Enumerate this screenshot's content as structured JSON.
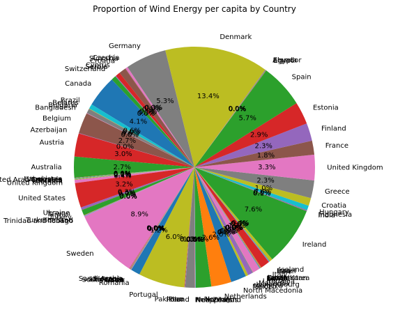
{
  "chart_data": {
    "type": "pie",
    "title": "Proportion of Wind Energy per capita by Country",
    "slices": [
      {
        "label": "Germany",
        "value": 5.3,
        "color": "#7f7f7f"
      },
      {
        "label": "Czechia",
        "value": 0.3,
        "color": "#e377c2"
      },
      {
        "label": "Slovakia",
        "value": 0.0,
        "color": "#8c564b"
      },
      {
        "label": "Croatia",
        "value": 0.9,
        "color": "#8c564b"
      },
      {
        "label": "Cyprus",
        "value": 0.6,
        "color": "#d62728"
      },
      {
        "label": "Serbia",
        "value": 0.1,
        "color": "#9467bd"
      },
      {
        "label": "Switzerland",
        "value": 0.6,
        "color": "#2ca02c"
      },
      {
        "label": "Canada",
        "value": 4.1,
        "color": "#1f77b4"
      },
      {
        "label": "Brazil",
        "value": 0.6,
        "color": "#17becf"
      },
      {
        "label": "Belarus",
        "value": 0.0,
        "color": "#bcbd22"
      },
      {
        "label": "Bulgaria",
        "value": 0.6,
        "color": "#7f7f7f"
      },
      {
        "label": "Bangladesh",
        "value": 0.0,
        "color": "#e377c2"
      },
      {
        "label": "Belgium",
        "value": 2.7,
        "color": "#8c564b"
      },
      {
        "label": "Azerbaijan",
        "value": 0.0,
        "color": "#9467bd"
      },
      {
        "label": "Austria",
        "value": 3.0,
        "color": "#d62728"
      },
      {
        "label": "Australia",
        "value": 2.7,
        "color": "#2ca02c"
      },
      {
        "label": "Uzbekistan",
        "value": 0.0,
        "color": "#ff7f0e"
      },
      {
        "label": "Venezuela",
        "value": 0.0,
        "color": "#1f77b4"
      },
      {
        "label": "United Arab Emirates",
        "value": 0.0,
        "color": "#17becf"
      },
      {
        "label": "Ukraine ",
        "value": 0.1,
        "color": "#bcbd22"
      },
      {
        "label": "Vietnam",
        "value": 0.0,
        "color": "#7f7f7f"
      },
      {
        "label": "United Kingdom ",
        "value": 0.4,
        "color": "#e377c2"
      },
      {
        "label": "United States",
        "value": 3.2,
        "color": "#d62728"
      },
      {
        "label": "Ukraine",
        "value": 0.3,
        "color": "#9467bd"
      },
      {
        "label": "Taiwan",
        "value": 0.0,
        "color": "#8c564b"
      },
      {
        "label": "Turkey",
        "value": 0.7,
        "color": "#2ca02c"
      },
      {
        "label": "Turkmenistan",
        "value": 0.0,
        "color": "#ff7f0e"
      },
      {
        "label": "Thailand",
        "value": 0.0,
        "color": "#9467bd"
      },
      {
        "label": "Trinidad and Tobago",
        "value": 0.0,
        "color": "#17becf"
      },
      {
        "label": "Sweden",
        "value": 8.9,
        "color": "#e377c2"
      },
      {
        "label": "Saudi Arabia",
        "value": 0.0,
        "color": "#d62728"
      },
      {
        "label": "Slovenia",
        "value": 0.0,
        "color": "#9467bd"
      },
      {
        "label": "Singapore",
        "value": 0.0,
        "color": "#bcbd22"
      },
      {
        "label": "Russia",
        "value": 0.0,
        "color": "#8c564b"
      },
      {
        "label": "South Africa",
        "value": 0.0,
        "color": "#7f7f7f"
      },
      {
        "label": "Qatar",
        "value": 0.0,
        "color": "#e377c2"
      },
      {
        "label": "Romania",
        "value": 1.2,
        "color": "#1f77b4"
      },
      {
        "label": "Portugal",
        "value": 6.0,
        "color": "#bcbd22"
      },
      {
        "label": "Pakistan",
        "value": 0.0,
        "color": "#d62728"
      },
      {
        "label": "Peru",
        "value": 0.0,
        "color": "#9467bd"
      },
      {
        "label": "Poland",
        "value": 1.2,
        "color": "#7f7f7f"
      },
      {
        "label": "Philippines",
        "value": 0.0,
        "color": "#8c564b"
      },
      {
        "label": "New Zealand",
        "value": 0.0,
        "color": "#e377c2"
      },
      {
        "label": "Netherlands ",
        "value": 0.0,
        "color": "#17becf"
      },
      {
        "label": "Norway",
        "value": 2.0,
        "color": "#2ca02c"
      },
      {
        "label": "Netherlands",
        "value": 2.6,
        "color": "#ff7f0e"
      },
      {
        "label": "North Macedonia",
        "value": 2.0,
        "color": "#1f77b4"
      },
      {
        "label": "Mexico",
        "value": 0.3,
        "color": "#bcbd22"
      },
      {
        "label": "Morocco",
        "value": 0.0,
        "color": "#7f7f7f"
      },
      {
        "label": "Luxembourg",
        "value": 0.6,
        "color": "#9467bd"
      },
      {
        "label": "Malaysia",
        "value": 0.0,
        "color": "#2ca02c"
      },
      {
        "label": "Lithuania",
        "value": 1.0,
        "color": "#e377c2"
      },
      {
        "label": "Kuwait",
        "value": 0.0,
        "color": "#17becf"
      },
      {
        "label": "Latvia",
        "value": 0.0,
        "color": "#1f77b4"
      },
      {
        "label": "Kazakhstan",
        "value": 0.0,
        "color": "#ff7f0e"
      },
      {
        "label": "South Korea",
        "value": 0.0,
        "color": "#8c564b"
      },
      {
        "label": "Japan",
        "value": 0.0,
        "color": "#bcbd22"
      },
      {
        "label": "Italy",
        "value": 1.2,
        "color": "#d62728"
      },
      {
        "label": "Iran",
        "value": 0.0,
        "color": "#9467bd"
      },
      {
        "label": "Israel",
        "value": 0.0,
        "color": "#17becf"
      },
      {
        "label": "Iraq",
        "value": 0.0,
        "color": "#1f77b4"
      },
      {
        "label": "Iceland",
        "value": 0.4,
        "color": "#bcbd22"
      },
      {
        "label": "Ireland",
        "value": 7.6,
        "color": "#2ca02c"
      },
      {
        "label": "India",
        "value": 0.1,
        "color": "#9467bd"
      },
      {
        "label": "Indonesia",
        "value": 0.0,
        "color": "#8c564b"
      },
      {
        "label": "Hungary",
        "value": 0.6,
        "color": "#17becf"
      },
      {
        "label": "Croatia ",
        "value": 1.0,
        "color": "#bcbd22"
      },
      {
        "label": "Greece",
        "value": 2.3,
        "color": "#7f7f7f"
      },
      {
        "label": "United Kingdom",
        "value": 3.3,
        "color": "#e377c2"
      },
      {
        "label": "France",
        "value": 1.8,
        "color": "#8c564b"
      },
      {
        "label": "Finland",
        "value": 2.3,
        "color": "#9467bd"
      },
      {
        "label": "Estonia",
        "value": 2.9,
        "color": "#d62728"
      },
      {
        "label": "Spain",
        "value": 5.7,
        "color": "#2ca02c"
      },
      {
        "label": "Egypt",
        "value": 0.0,
        "color": "#ff7f0e"
      },
      {
        "label": "Ecuador",
        "value": 0.0,
        "color": "#1f77b4"
      },
      {
        "label": "Algeria",
        "value": 0.0,
        "color": "#9467bd"
      },
      {
        "label": "Denmark",
        "value": 13.4,
        "color": "#bcbd22"
      }
    ]
  }
}
